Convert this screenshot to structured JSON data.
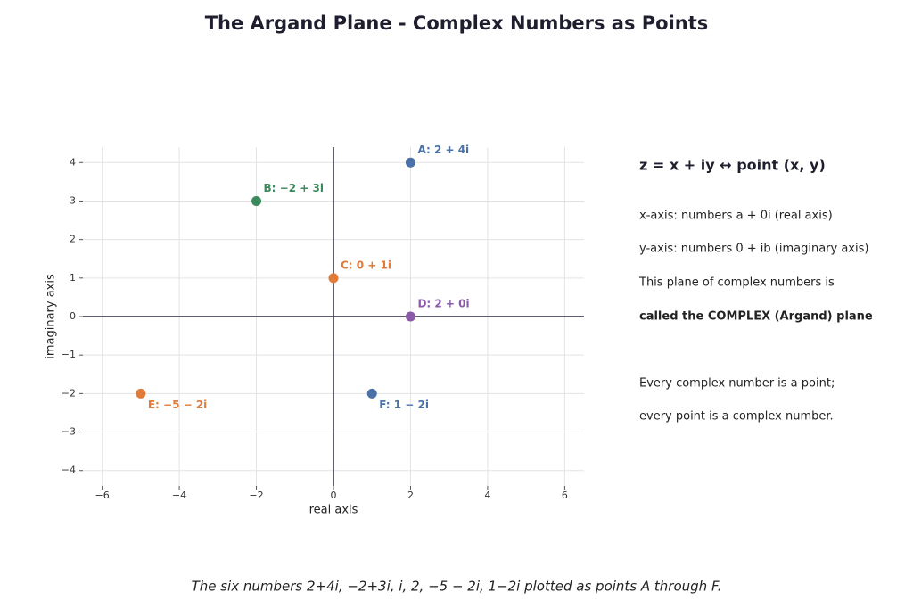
{
  "chart_data": {
    "type": "scatter",
    "title": "The Argand Plane - Complex Numbers as Points",
    "xlabel": "real axis",
    "ylabel": "imaginary axis",
    "x": [
      2,
      -2,
      0,
      2,
      -5,
      1
    ],
    "values": [
      4,
      3,
      1,
      0,
      -2,
      -2
    ],
    "colors": [
      "#4a72a8",
      "#3b8a5c",
      "#e07b39",
      "#8a5aa8",
      "#e07b39",
      "#4a72a8"
    ],
    "point_labels": [
      "A: 2 + 4i",
      "B: −2 + 3i",
      "C: 0 + 1i",
      "D: 2 + 0i",
      "E: −5 − 2i",
      "F: 1 − 2i"
    ],
    "xlim": [
      -6.5,
      6.5
    ],
    "ylim": [
      -4.4,
      4.4
    ],
    "xticks": [
      {
        "value": -6,
        "label": "−6"
      },
      {
        "value": -4,
        "label": "−4"
      },
      {
        "value": -2,
        "label": "−2"
      },
      0,
      2,
      4,
      6
    ],
    "yticks": [
      {
        "value": -4,
        "label": "−4"
      },
      {
        "value": -3,
        "label": "−3"
      },
      {
        "value": -2,
        "label": "−2"
      },
      {
        "value": -1,
        "label": "−1"
      },
      0,
      1,
      2,
      3,
      4
    ],
    "grid": true,
    "side_heading": "z = x + iy  ↔  point (x, y)",
    "side_lines": [
      "x-axis: numbers a + 0i (real axis)",
      "y-axis: numbers 0 + ib (imaginary axis)",
      "This plane of complex numbers is",
      "called the COMPLEX (Argand) plane",
      "Every complex number is a point;",
      "every point is a complex number."
    ],
    "caption": "The six numbers 2+4i, −2+3i, i, 2, −5 − 2i, 1−2i plotted as points A through F."
  }
}
